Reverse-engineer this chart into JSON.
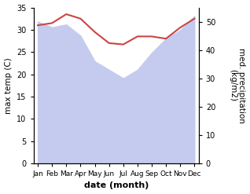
{
  "months": [
    "Jan",
    "Feb",
    "Mar",
    "Apr",
    "May",
    "Jun",
    "Jul",
    "Aug",
    "Sep",
    "Oct",
    "Nov",
    "Dec"
  ],
  "temperature": [
    31.0,
    31.5,
    33.5,
    32.5,
    29.5,
    27.0,
    26.7,
    28.5,
    28.5,
    28.0,
    30.5,
    32.5
  ],
  "precipitation": [
    50.0,
    48.0,
    49.0,
    45.0,
    36.0,
    33.0,
    30.0,
    33.0,
    39.0,
    44.0,
    47.0,
    52.0
  ],
  "temp_color": "#cc4444",
  "precip_fill_color": "#c5cbee",
  "temp_ylim": [
    0,
    35
  ],
  "precip_ylim": [
    0,
    55
  ],
  "temp_yticks": [
    0,
    5,
    10,
    15,
    20,
    25,
    30,
    35
  ],
  "precip_yticks": [
    0,
    10,
    20,
    30,
    40,
    50
  ],
  "xlabel": "date (month)",
  "ylabel_left": "max temp (C)",
  "ylabel_right": "med. precipitation\n(kg/m2)",
  "bg_color": "#ffffff"
}
